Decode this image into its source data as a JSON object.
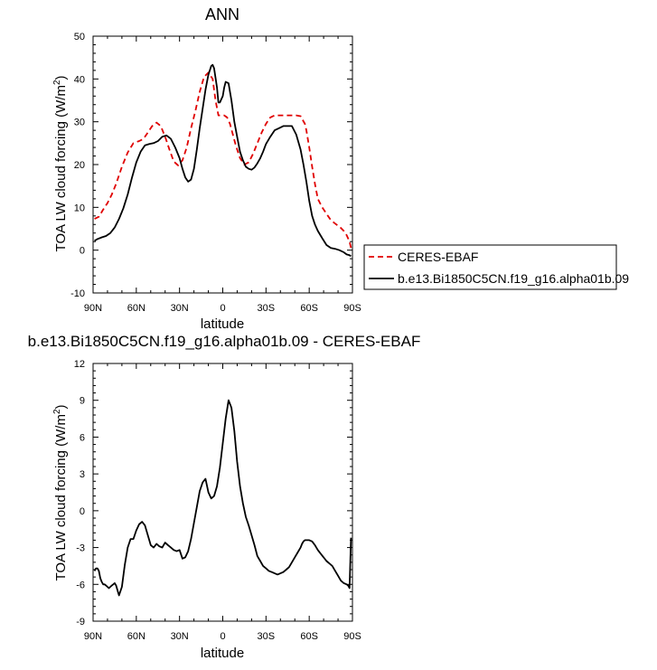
{
  "chart_data": [
    {
      "type": "line",
      "title": "ANN",
      "xlabel": "latitude",
      "ylabel": "TOA LW cloud forcing (W/m²)",
      "ylim": [
        -10,
        50
      ],
      "xlim": [
        90,
        -90
      ],
      "xticks": [
        90,
        60,
        30,
        0,
        -30,
        -60,
        -90
      ],
      "xticklabels": [
        "90N",
        "60N",
        "30N",
        "0",
        "30S",
        "60S",
        "90S"
      ],
      "yticks": [
        -10,
        0,
        10,
        20,
        30,
        40,
        50
      ],
      "yticklabels": [
        "-10",
        "0",
        "10",
        "20",
        "30",
        "40",
        "50"
      ],
      "legend_position": "right",
      "series": [
        {
          "name": "CERES-EBAF",
          "color": "#e00000",
          "style": "dashed",
          "x": [
            89,
            86,
            83,
            80,
            77,
            74,
            70,
            66,
            62,
            58,
            55,
            52,
            49,
            46,
            43,
            40,
            37,
            34,
            31,
            28,
            25,
            22,
            19,
            16,
            13,
            10,
            7,
            5,
            3,
            1,
            -1,
            -3,
            -5,
            -7,
            -9,
            -12,
            -15,
            -18,
            -21,
            -24,
            -27,
            -30,
            -33,
            -36,
            -39,
            -42,
            -45,
            -48,
            -51,
            -54,
            -57,
            -58,
            -60,
            -62,
            -64,
            -66,
            -69,
            -72,
            -75,
            -78,
            -80,
            -82,
            -84,
            -86,
            -88,
            -89
          ],
          "y": [
            7.3,
            7.8,
            9.5,
            11,
            13,
            15.5,
            19.5,
            22.8,
            25.0,
            25.5,
            26.0,
            27.5,
            29.0,
            29.8,
            29.0,
            26.5,
            23.5,
            20.7,
            19.8,
            21.0,
            24.0,
            28.5,
            32.5,
            37.0,
            40.5,
            41.5,
            40.0,
            35.0,
            31.5,
            31.5,
            31.5,
            31.0,
            29.5,
            27.0,
            24.5,
            21.5,
            20.0,
            20.5,
            22.5,
            25.0,
            27.5,
            29.5,
            31.0,
            31.5,
            31.5,
            31.5,
            31.5,
            31.5,
            31.5,
            31.3,
            29.5,
            28.0,
            24.0,
            19.5,
            15.5,
            12.0,
            10.0,
            8.5,
            7.0,
            6.2,
            5.7,
            5.2,
            4.5,
            3.5,
            2.0,
            0.5
          ]
        },
        {
          "name": "b.e13.Bi1850C5CN.f19_g16.alpha01b.09",
          "color": "#000000",
          "style": "solid",
          "x": [
            89,
            87,
            84,
            81,
            78,
            75,
            72,
            69,
            66,
            63,
            60,
            57,
            54,
            51,
            48,
            45,
            42,
            39,
            36,
            33,
            30,
            28,
            26,
            24,
            22,
            20,
            18,
            16,
            14,
            12,
            10,
            8,
            7,
            6,
            4,
            3,
            2,
            0,
            -1,
            -2,
            -4,
            -6,
            -8,
            -10,
            -12,
            -14,
            -16,
            -18,
            -20,
            -22,
            -24,
            -26,
            -28,
            -30,
            -33,
            -36,
            -39,
            -42,
            -45,
            -48,
            -51,
            -54,
            -56,
            -58,
            -60,
            -62,
            -64,
            -66,
            -69,
            -72,
            -75,
            -78,
            -81,
            -84,
            -86,
            -88,
            -89
          ],
          "y": [
            2.2,
            2.6,
            3.0,
            3.3,
            4.0,
            5.3,
            7.3,
            9.8,
            13.0,
            17.0,
            20.5,
            23.0,
            24.5,
            24.8,
            25.0,
            25.5,
            26.5,
            26.8,
            26.0,
            24.0,
            21.5,
            19.0,
            17.0,
            16.0,
            16.5,
            19.0,
            23.5,
            28.5,
            33.0,
            37.5,
            41.0,
            43.0,
            43.3,
            42.5,
            38.0,
            34.5,
            34.5,
            36.0,
            38.0,
            39.3,
            39.0,
            35.0,
            30.0,
            26.5,
            23.0,
            21.0,
            19.5,
            19.0,
            18.8,
            19.3,
            20.3,
            21.5,
            23.0,
            24.8,
            26.5,
            28.0,
            28.5,
            29.0,
            29.0,
            29.0,
            27.0,
            23.5,
            20.0,
            16.0,
            11.5,
            8.0,
            6.0,
            4.5,
            2.8,
            1.2,
            0.5,
            0.3,
            0.0,
            -0.5,
            -1.0,
            -1.2,
            -1.4
          ]
        }
      ]
    },
    {
      "type": "line",
      "title": "b.e13.Bi1850C5CN.f19_g16.alpha01b.09 - CERES-EBAF",
      "xlabel": "latitude",
      "ylabel": "TOA LW cloud forcing (W/m²)",
      "ylim": [
        -9,
        12
      ],
      "xlim": [
        90,
        -90
      ],
      "xticks": [
        90,
        60,
        30,
        0,
        -30,
        -60,
        -90
      ],
      "xticklabels": [
        "90N",
        "60N",
        "30N",
        "0",
        "30S",
        "60S",
        "90S"
      ],
      "yticks": [
        -9,
        -6,
        -3,
        0,
        3,
        6,
        9,
        12
      ],
      "yticklabels": [
        "-9",
        "-6",
        "-3",
        "0",
        "3",
        "6",
        "9",
        "12"
      ],
      "series": [
        {
          "color": "#000000",
          "style": "solid",
          "x": [
            89,
            88,
            87,
            86,
            85,
            84,
            83,
            82,
            81,
            80,
            79,
            78,
            77,
            76,
            75,
            74,
            73,
            72,
            70,
            68,
            66,
            64,
            62,
            60,
            58,
            56,
            54,
            52,
            50,
            48,
            46,
            44,
            42,
            40,
            38,
            36,
            34,
            32,
            30,
            28,
            26,
            24,
            22,
            20,
            18,
            16,
            14,
            12,
            10,
            8,
            6,
            4,
            2,
            0,
            -2,
            -4,
            -6,
            -8,
            -10,
            -12,
            -14,
            -16,
            -18,
            -20,
            -22,
            -24,
            -26,
            -28,
            -30,
            -32,
            -34,
            -36,
            -38,
            -40,
            -42,
            -44,
            -46,
            -48,
            -50,
            -52,
            -54,
            -55,
            -56,
            -57,
            -58,
            -60,
            -62,
            -64,
            -66,
            -68,
            -70,
            -72,
            -74,
            -76,
            -78,
            -80,
            -82,
            -84,
            -86,
            -87,
            -88,
            -89
          ],
          "y": [
            -4.9,
            -4.7,
            -4.7,
            -4.9,
            -5.5,
            -5.8,
            -6.0,
            -6.0,
            -6.1,
            -6.2,
            -6.3,
            -6.2,
            -6.1,
            -6.0,
            -5.9,
            -6.1,
            -6.5,
            -6.9,
            -6.2,
            -4.4,
            -3.0,
            -2.3,
            -2.3,
            -1.6,
            -1.1,
            -0.9,
            -1.2,
            -2.0,
            -2.8,
            -3.0,
            -2.7,
            -2.9,
            -3.0,
            -2.6,
            -2.8,
            -3.0,
            -3.2,
            -3.3,
            -3.2,
            -3.9,
            -3.8,
            -3.3,
            -2.3,
            -1.0,
            0.3,
            1.6,
            2.3,
            2.6,
            1.5,
            1.0,
            1.2,
            2.0,
            3.5,
            5.5,
            7.5,
            9.0,
            8.4,
            6.5,
            4.0,
            2.0,
            0.6,
            -0.5,
            -1.2,
            -2.0,
            -2.8,
            -3.7,
            -4.1,
            -4.5,
            -4.7,
            -4.9,
            -5.0,
            -5.1,
            -5.2,
            -5.1,
            -5.0,
            -4.8,
            -4.6,
            -4.2,
            -3.8,
            -3.4,
            -3.0,
            -2.7,
            -2.5,
            -2.4,
            -2.4,
            -2.4,
            -2.5,
            -2.8,
            -3.2,
            -3.5,
            -3.8,
            -4.1,
            -4.3,
            -4.5,
            -4.9,
            -5.3,
            -5.7,
            -5.9,
            -6.0,
            -6.1,
            -6.3,
            -2.2
          ]
        }
      ]
    }
  ]
}
